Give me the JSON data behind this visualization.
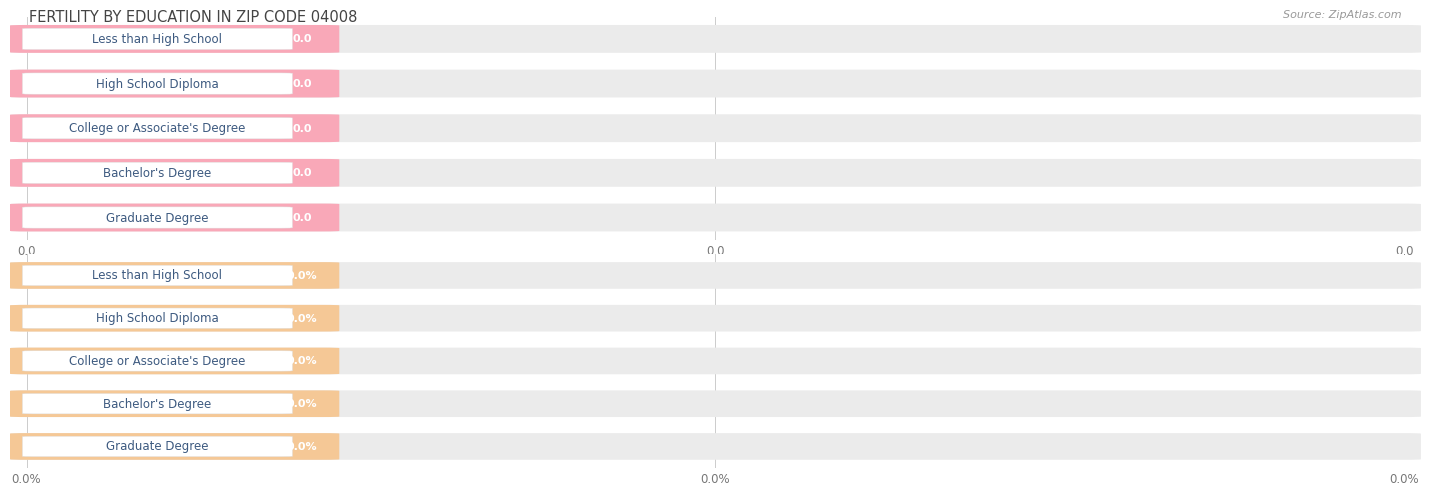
{
  "title": "FERTILITY BY EDUCATION IN ZIP CODE 04008",
  "source": "Source: ZipAtlas.com",
  "categories": [
    "Less than High School",
    "High School Diploma",
    "College or Associate's Degree",
    "Bachelor's Degree",
    "Graduate Degree"
  ],
  "values_top": [
    0.0,
    0.0,
    0.0,
    0.0,
    0.0
  ],
  "values_bottom": [
    0.0,
    0.0,
    0.0,
    0.0,
    0.0
  ],
  "bar_color_top": "#F9A8B8",
  "bar_bg_color_top": "#EBEBEB",
  "bar_color_bottom": "#F5C896",
  "bar_bg_color_bottom": "#EBEBEB",
  "label_bg_color": "#FFFFFF",
  "label_text_color": "#3D5A80",
  "value_text_color": "#FFFFFF",
  "tick_label_color": "#777777",
  "title_color": "#444444",
  "source_color": "#999999",
  "background_color": "#FFFFFF",
  "xtick_labels_top": [
    "0.0",
    "0.0",
    "0.0"
  ],
  "xtick_labels_bottom": [
    "0.0%",
    "0.0%",
    "0.0%"
  ],
  "label_font_size": 8.5,
  "value_font_size": 8.0,
  "title_font_size": 10.5,
  "source_font_size": 8.0,
  "tick_font_size": 8.5
}
